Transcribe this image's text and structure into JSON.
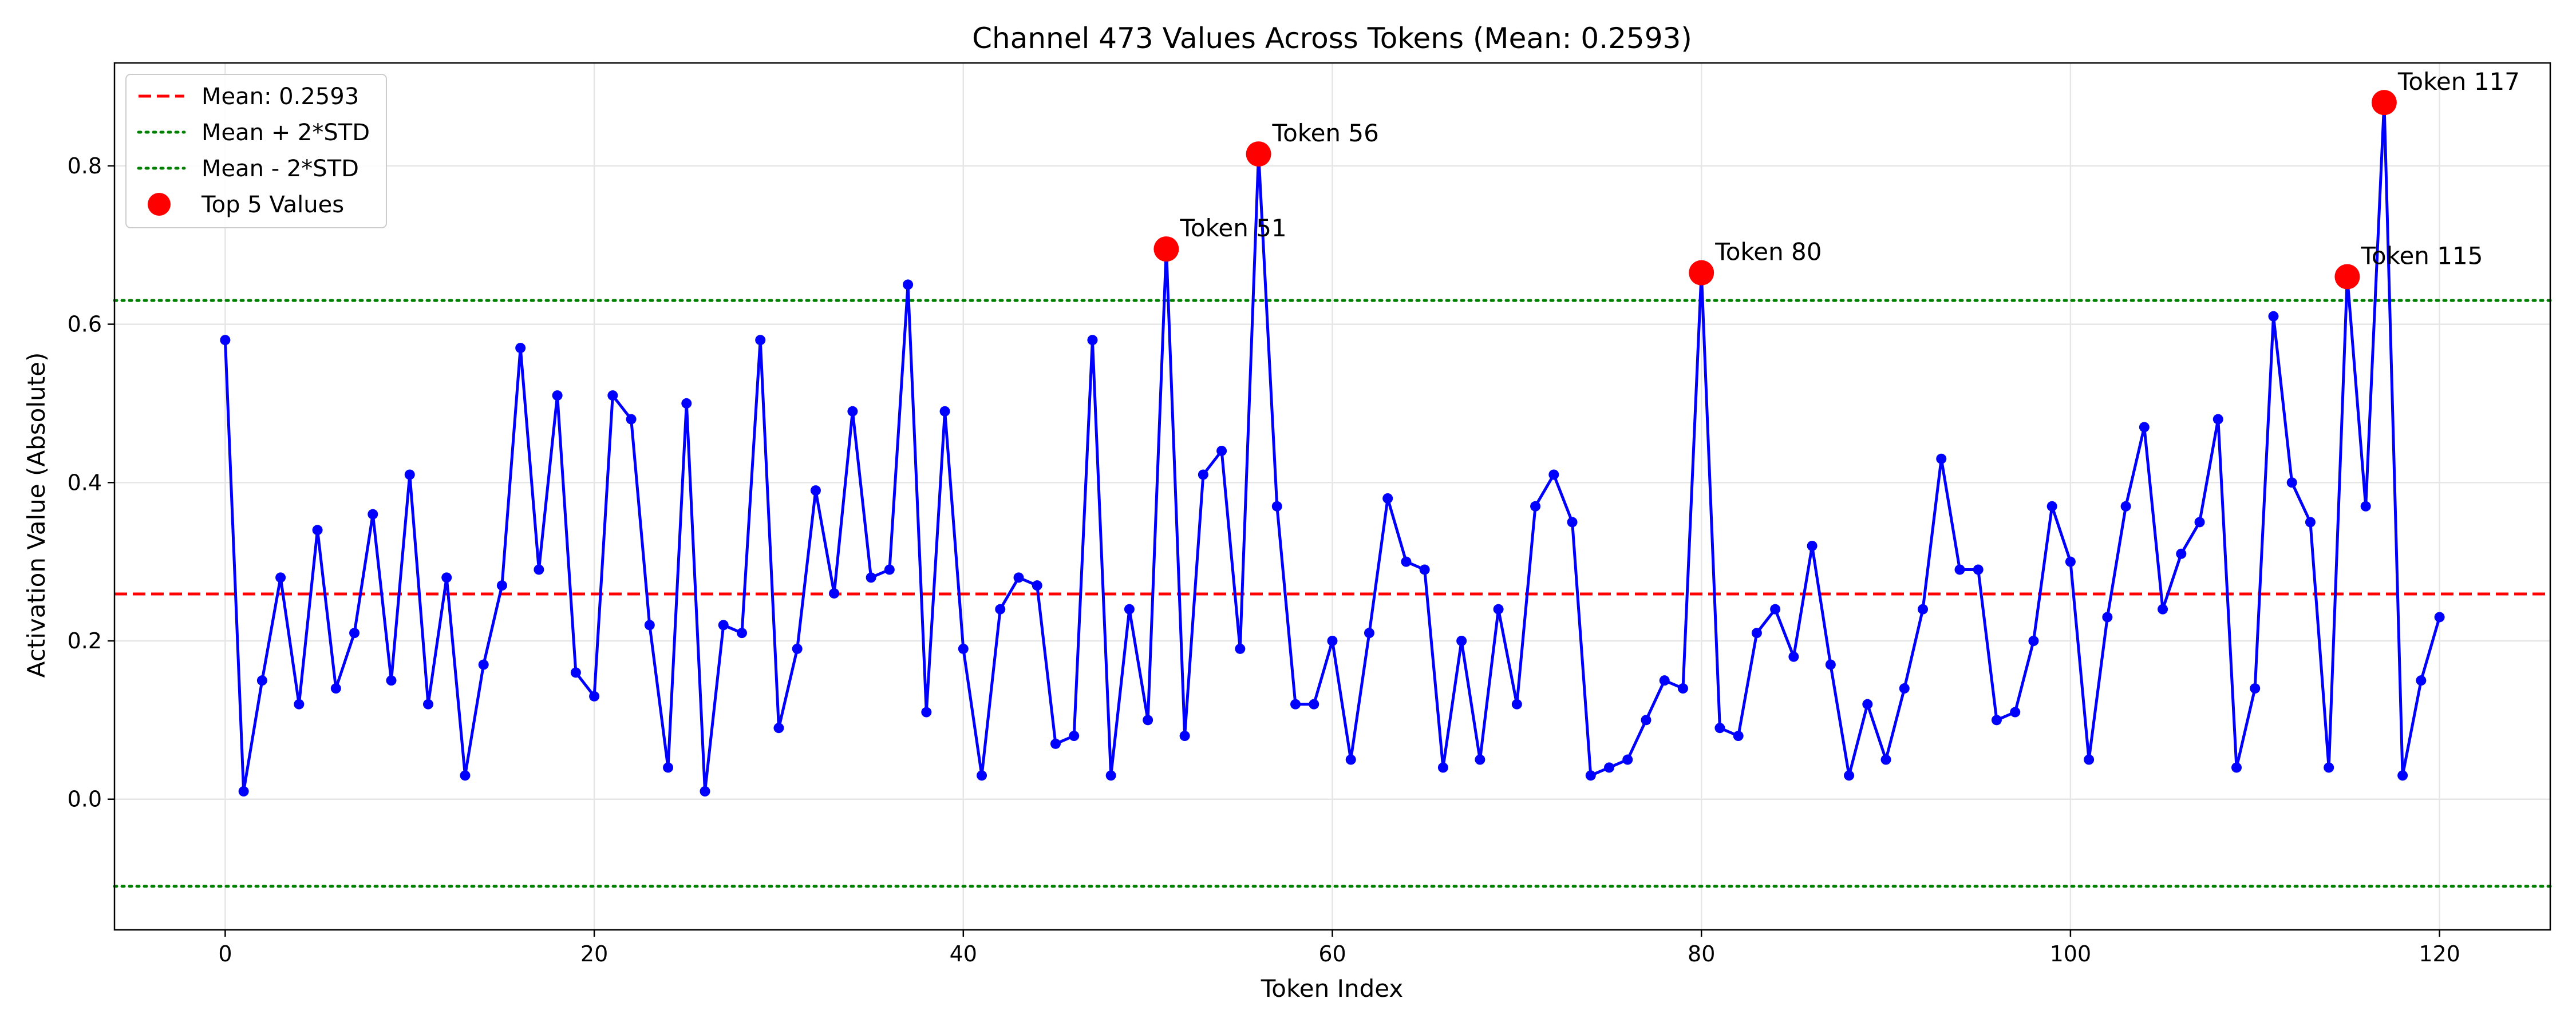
{
  "chart_data": {
    "type": "line",
    "title": "Channel 473 Values Across Tokens (Mean: 0.2593)",
    "xlabel": "Token Index",
    "ylabel": "Activation Value (Absolute)",
    "xlim": [
      -6,
      126
    ],
    "ylim": [
      -0.165,
      0.93
    ],
    "xticks": [
      0,
      20,
      40,
      60,
      80,
      100,
      120
    ],
    "yticks": [
      0.0,
      0.2,
      0.4,
      0.6,
      0.8
    ],
    "grid": true,
    "legend_position": "top-left",
    "colors": {
      "line": "#0000ff",
      "mean": "#ff0000",
      "std": "#008000",
      "top": "#ff0000"
    },
    "series": [
      {
        "name": "Channel 473",
        "values": [
          0.58,
          0.01,
          0.15,
          0.28,
          0.12,
          0.34,
          0.14,
          0.21,
          0.36,
          0.15,
          0.41,
          0.12,
          0.28,
          0.03,
          0.17,
          0.27,
          0.57,
          0.29,
          0.51,
          0.16,
          0.13,
          0.51,
          0.48,
          0.22,
          0.04,
          0.5,
          0.01,
          0.22,
          0.21,
          0.58,
          0.09,
          0.19,
          0.39,
          0.26,
          0.49,
          0.28,
          0.29,
          0.65,
          0.11,
          0.49,
          0.19,
          0.03,
          0.24,
          0.28,
          0.27,
          0.07,
          0.08,
          0.58,
          0.03,
          0.24,
          0.1,
          0.695,
          0.08,
          0.41,
          0.44,
          0.19,
          0.815,
          0.37,
          0.12,
          0.12,
          0.2,
          0.05,
          0.21,
          0.38,
          0.3,
          0.29,
          0.04,
          0.2,
          0.05,
          0.24,
          0.12,
          0.37,
          0.41,
          0.35,
          0.03,
          0.04,
          0.05,
          0.1,
          0.15,
          0.14,
          0.665,
          0.09,
          0.08,
          0.21,
          0.24,
          0.18,
          0.32,
          0.17,
          0.03,
          0.12,
          0.05,
          0.14,
          0.24,
          0.43,
          0.29,
          0.29,
          0.1,
          0.11,
          0.2,
          0.37,
          0.3,
          0.05,
          0.23,
          0.37,
          0.47,
          0.24,
          0.31,
          0.35,
          0.48,
          0.04,
          0.14,
          0.61,
          0.4,
          0.35,
          0.04,
          0.66,
          0.37,
          0.88,
          0.03,
          0.15,
          0.23
        ]
      }
    ],
    "mean": 0.2593,
    "upper": 0.63,
    "lower": -0.11,
    "legend": [
      {
        "label": "Mean: 0.2593",
        "style": "dashed",
        "color": "#ff0000"
      },
      {
        "label": "Mean + 2*STD",
        "style": "dotted",
        "color": "#008000"
      },
      {
        "label": "Mean - 2*STD",
        "style": "dotted",
        "color": "#008000"
      },
      {
        "label": "Top 5 Values",
        "style": "marker",
        "color": "#ff0000"
      }
    ],
    "top_points": [
      {
        "x": 51,
        "y": 0.695,
        "label": "Token 51"
      },
      {
        "x": 56,
        "y": 0.815,
        "label": "Token 56"
      },
      {
        "x": 80,
        "y": 0.665,
        "label": "Token 80"
      },
      {
        "x": 115,
        "y": 0.66,
        "label": "Token 115"
      },
      {
        "x": 117,
        "y": 0.88,
        "label": "Token 117"
      }
    ]
  }
}
